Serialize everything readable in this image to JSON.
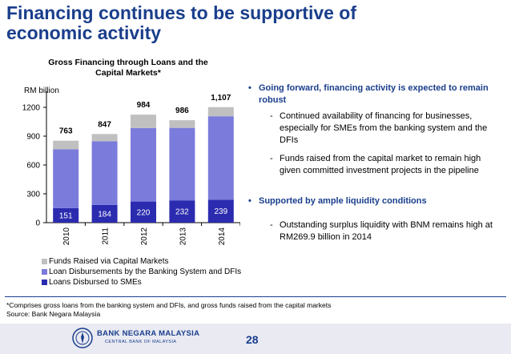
{
  "slide": {
    "title": "Financing continues to be supportive of economic activity",
    "page_number": "28"
  },
  "colors": {
    "title": "#1a3e8c",
    "capital_markets": "#c0c0c0",
    "banking_dfis": "#7b7bdc",
    "smes": "#2b2bb0"
  },
  "chart_data": {
    "type": "bar",
    "stacked": true,
    "title": "Gross Financing through Loans and the Capital Markets*",
    "ylabel": "RM billion",
    "ylim": [
      0,
      1300
    ],
    "yticks": [
      0,
      300,
      600,
      900,
      1200
    ],
    "categories": [
      "2010",
      "2011",
      "2012",
      "2013",
      "2014"
    ],
    "series": [
      {
        "name": "Loans Disbursed to SMEs",
        "values": [
          151,
          184,
          220,
          232,
          239
        ],
        "color": "#2b2bb0"
      },
      {
        "name": "Loan Disbursements by the Banking System and DFIs",
        "values": [
          612,
          663,
          764,
          754,
          868
        ],
        "color": "#7b7bdc"
      },
      {
        "name": "Funds Raised via Capital Markets",
        "values": [
          90,
          75,
          140,
          80,
          95
        ],
        "color": "#c0c0c0"
      }
    ],
    "loan_totals": [
      "763",
      "847",
      "984",
      "986",
      "1,107"
    ],
    "sme_labels": [
      "151",
      "184",
      "220",
      "232",
      "239"
    ],
    "legend": [
      "Funds Raised via Capital Markets",
      "Loan Disbursements by the Banking System and DFIs",
      "Loans Disbursed to SMEs"
    ],
    "legend_position": "bottom",
    "grid": false
  },
  "bullets": [
    {
      "text": "Going forward, financing activity is expected to remain robust",
      "subs": [
        "Continued availability of financing for businesses, especially for SMEs from the banking system and the DFIs",
        "Funds raised from the capital market to remain high given committed investment projects in the pipeline"
      ]
    },
    {
      "text": "Supported by ample liquidity conditions",
      "subs": [
        "Outstanding surplus liquidity with BNM remains high at RM269.9 billion in 2014"
      ]
    }
  ],
  "bullet_glyph": "•",
  "dash_glyph": "-",
  "footnote": "*Comprises gross loans from the banking system and DFIs, and gross funds raised from the capital markets",
  "source": "Source: Bank Negara Malaysia",
  "brand": {
    "name": "BANK NEGARA MALAYSIA",
    "subtitle": "CENTRAL BANK OF MALAYSIA"
  }
}
